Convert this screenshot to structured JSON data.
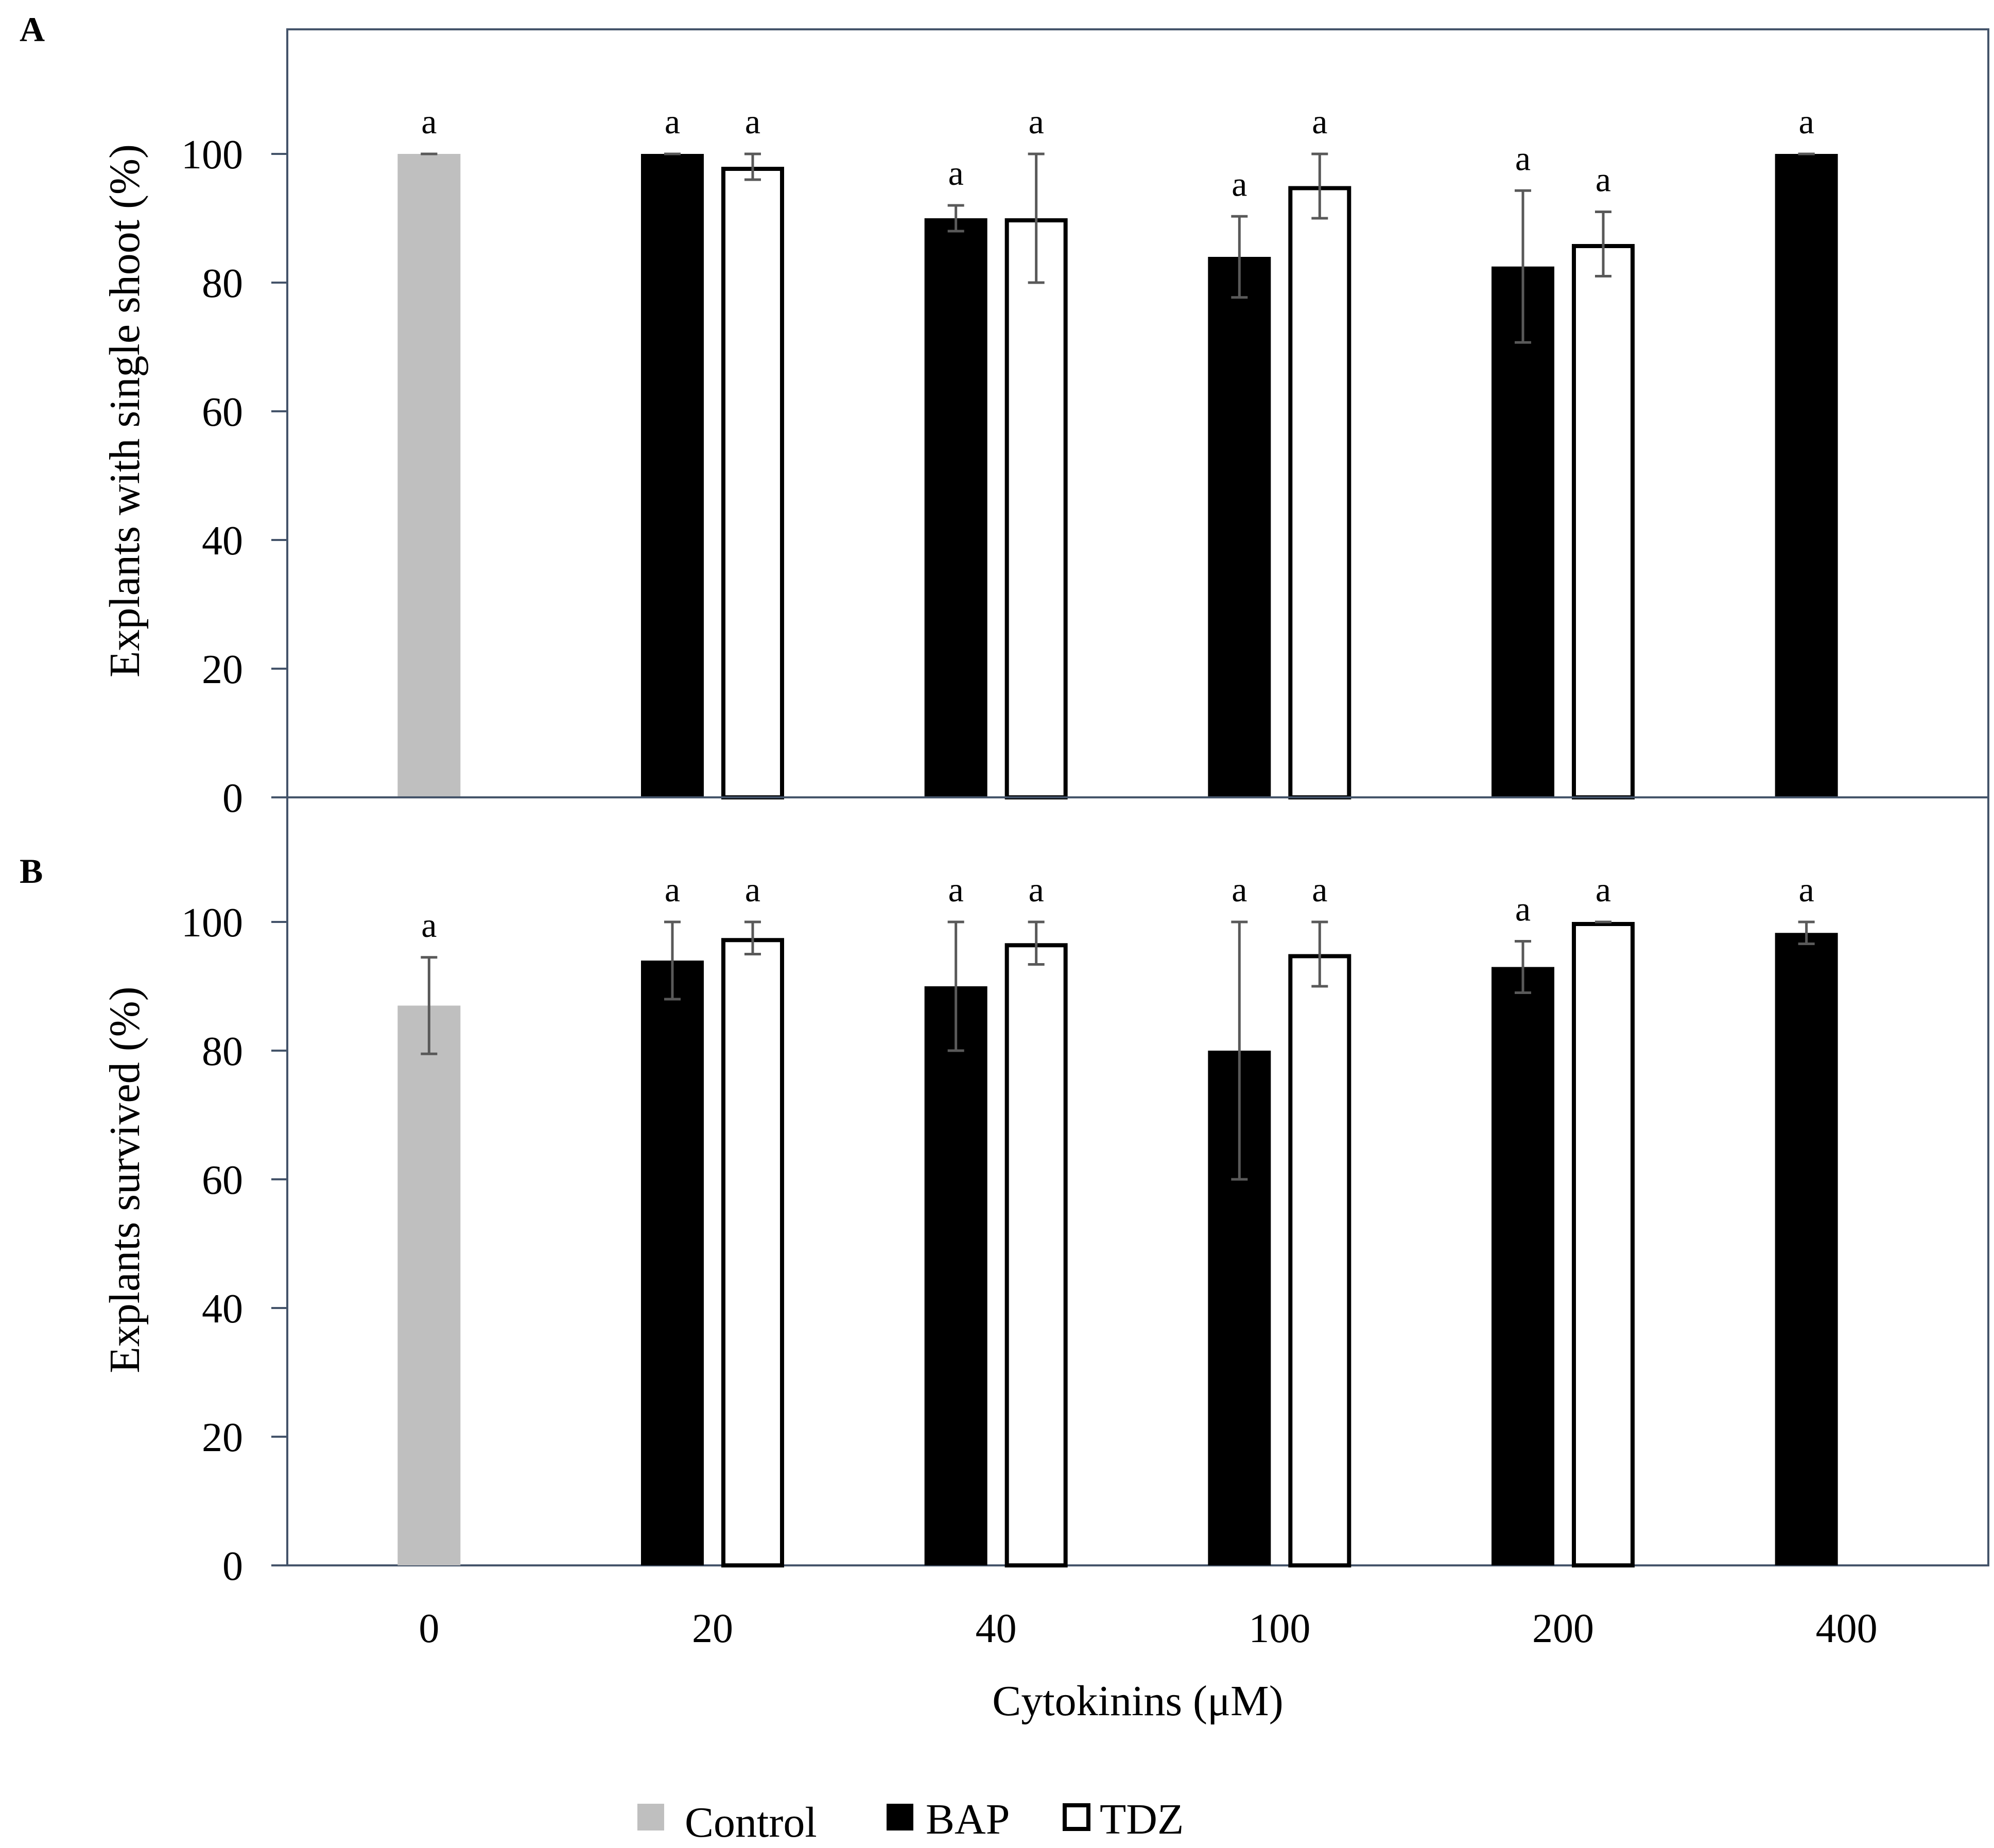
{
  "colors": {
    "frame": "#44546a",
    "control": "#bfbfbf",
    "bap": "#000000",
    "tdz": "#ffffff",
    "error_bar": "#595959"
  },
  "xaxis": {
    "label": "Cytokinins (μM)",
    "categories": [
      "0",
      "20",
      "40",
      "100",
      "200",
      "400"
    ]
  },
  "legend": [
    {
      "key": "control",
      "label": "Control"
    },
    {
      "key": "bap",
      "label": "BAP"
    },
    {
      "key": "tdz",
      "label": "TDZ"
    }
  ],
  "chart_data": [
    {
      "panel": "A",
      "type": "bar",
      "ylabel": "Explants with single shoot (%)",
      "ylim": [
        0,
        120
      ],
      "yticks": [
        0,
        20,
        40,
        60,
        80,
        100
      ],
      "categories": [
        "0",
        "20",
        "40",
        "100",
        "200",
        "400"
      ],
      "series": [
        {
          "name": "Control",
          "key": "control",
          "values": [
            100,
            null,
            null,
            null,
            null,
            null
          ],
          "errors": [
            0,
            null,
            null,
            null,
            null,
            null
          ],
          "letters": [
            "a",
            null,
            null,
            null,
            null,
            null
          ]
        },
        {
          "name": "BAP",
          "key": "bap",
          "values": [
            null,
            100,
            90,
            84,
            82.5,
            100
          ],
          "errors": [
            null,
            0,
            2,
            6.3,
            11.8,
            0
          ],
          "letters": [
            null,
            "a",
            "a",
            "a",
            "a",
            "a"
          ]
        },
        {
          "name": "TDZ",
          "key": "tdz",
          "values": [
            null,
            98,
            90,
            95,
            86,
            null
          ],
          "errors": [
            null,
            2,
            10,
            5,
            5,
            null
          ],
          "letters": [
            null,
            "a",
            "a",
            "a",
            "a",
            null
          ]
        }
      ]
    },
    {
      "panel": "B",
      "type": "bar",
      "ylabel": "Explants survived (%)",
      "ylim": [
        0,
        120
      ],
      "yticks": [
        0,
        20,
        40,
        60,
        80,
        100
      ],
      "categories": [
        "0",
        "20",
        "40",
        "100",
        "200",
        "400"
      ],
      "series": [
        {
          "name": "Control",
          "key": "control",
          "values": [
            87,
            null,
            null,
            null,
            null,
            null
          ],
          "errors": [
            7.5,
            null,
            null,
            null,
            null,
            null
          ],
          "letters": [
            "a",
            null,
            null,
            null,
            null,
            null
          ]
        },
        {
          "name": "BAP",
          "key": "bap",
          "values": [
            null,
            94,
            90,
            80,
            93,
            98.3
          ],
          "errors": [
            null,
            6,
            10,
            20,
            4,
            1.7
          ],
          "letters": [
            null,
            "a",
            "a",
            "a",
            "a",
            "a"
          ]
        },
        {
          "name": "TDZ",
          "key": "tdz",
          "values": [
            null,
            97.5,
            96.7,
            95,
            100,
            null
          ],
          "errors": [
            null,
            2.5,
            3.3,
            5,
            0,
            null
          ],
          "letters": [
            null,
            "a",
            "a",
            "a",
            "a",
            null
          ]
        }
      ]
    }
  ]
}
